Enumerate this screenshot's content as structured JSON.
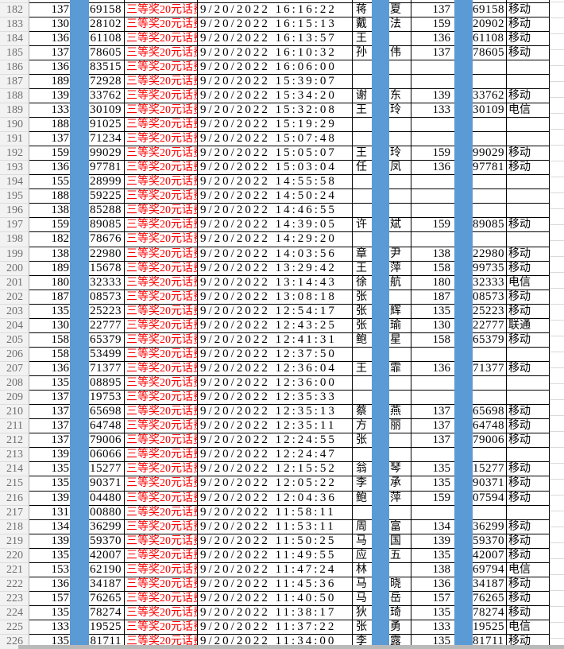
{
  "sheet": {
    "prize_label": "三等奖20元话费",
    "top_partial_row": {
      "carrier": "移动"
    },
    "rows": [
      {
        "n": "182",
        "p1": "137",
        "s1": "69158",
        "dt": "9/20/2022 16:16:22",
        "sn": "蒋",
        "gl": "夏",
        "p2": "137",
        "s2": "69158",
        "car": "移动"
      },
      {
        "n": "183",
        "p1": "130",
        "s1": "28102",
        "dt": "9/20/2022 16:15:13",
        "sn": "戴",
        "gl": "法",
        "p2": "159",
        "s2": "20902",
        "car": "移动"
      },
      {
        "n": "184",
        "p1": "136",
        "s1": "61108",
        "dt": "9/20/2022 16:13:57",
        "sn": "王",
        "gl": "",
        "p2": "136",
        "s2": "61108",
        "car": "移动"
      },
      {
        "n": "185",
        "p1": "137",
        "s1": "78605",
        "dt": "9/20/2022 16:10:32",
        "sn": "孙",
        "gl": "伟",
        "p2": "137",
        "s2": "78605",
        "car": "移动"
      },
      {
        "n": "186",
        "p1": "136",
        "s1": "83515",
        "dt": "9/20/2022 16:06:00",
        "sn": "",
        "gl": "",
        "p2": "",
        "s2": "",
        "car": ""
      },
      {
        "n": "187",
        "p1": "189",
        "s1": "72928",
        "dt": "9/20/2022 15:39:07",
        "sn": "",
        "gl": "",
        "p2": "",
        "s2": "",
        "car": ""
      },
      {
        "n": "188",
        "p1": "139",
        "s1": "33762",
        "dt": "9/20/2022 15:34:20",
        "sn": "谢",
        "gl": "东",
        "p2": "139",
        "s2": "33762",
        "car": "移动"
      },
      {
        "n": "189",
        "p1": "133",
        "s1": "30109",
        "dt": "9/20/2022 15:32:08",
        "sn": "王",
        "gl": "玲",
        "p2": "133",
        "s2": "30109",
        "car": "电信"
      },
      {
        "n": "190",
        "p1": "188",
        "s1": "91025",
        "dt": "9/20/2022 15:19:29",
        "sn": "",
        "gl": "",
        "p2": "",
        "s2": "",
        "car": ""
      },
      {
        "n": "191",
        "p1": "137",
        "s1": "71234",
        "dt": "9/20/2022 15:07:48",
        "sn": "",
        "gl": "",
        "p2": "",
        "s2": "",
        "car": ""
      },
      {
        "n": "192",
        "p1": "159",
        "s1": "99029",
        "dt": "9/20/2022 15:05:07",
        "sn": "王",
        "gl": "玲",
        "p2": "159",
        "s2": "99029",
        "car": "移动"
      },
      {
        "n": "193",
        "p1": "136",
        "s1": "97781",
        "dt": "9/20/2022 15:03:04",
        "sn": "任",
        "gl": "凤",
        "p2": "136",
        "s2": "97781",
        "car": "移动"
      },
      {
        "n": "194",
        "p1": "155",
        "s1": "28999",
        "dt": "9/20/2022 14:55:58",
        "sn": "",
        "gl": "",
        "p2": "",
        "s2": "",
        "car": ""
      },
      {
        "n": "195",
        "p1": "188",
        "s1": "59225",
        "dt": "9/20/2022 14:50:24",
        "sn": "",
        "gl": "",
        "p2": "",
        "s2": "",
        "car": ""
      },
      {
        "n": "196",
        "p1": "138",
        "s1": "85288",
        "dt": "9/20/2022 14:46:55",
        "sn": "",
        "gl": "",
        "p2": "",
        "s2": "",
        "car": ""
      },
      {
        "n": "197",
        "p1": "159",
        "s1": "89085",
        "dt": "9/20/2022 14:39:05",
        "sn": "许",
        "gl": "斌",
        "p2": "159",
        "s2": "89085",
        "car": "移动"
      },
      {
        "n": "198",
        "p1": "182",
        "s1": "78676",
        "dt": "9/20/2022 14:29:20",
        "sn": "",
        "gl": "",
        "p2": "",
        "s2": "",
        "car": ""
      },
      {
        "n": "199",
        "p1": "138",
        "s1": "22980",
        "dt": "9/20/2022 14:03:56",
        "sn": "章",
        "gl": "尹",
        "p2": "138",
        "s2": "22980",
        "car": "移动"
      },
      {
        "n": "200",
        "p1": "189",
        "s1": "15678",
        "dt": "9/20/2022 13:29:42",
        "sn": "王",
        "gl": "萍",
        "p2": "158",
        "s2": "99735",
        "car": "移动"
      },
      {
        "n": "201",
        "p1": "180",
        "s1": "32333",
        "dt": "9/20/2022 13:14:43",
        "sn": "徐",
        "gl": "航",
        "p2": "180",
        "s2": "32333",
        "car": "电信"
      },
      {
        "n": "202",
        "p1": "187",
        "s1": "08573",
        "dt": "9/20/2022 13:08:18",
        "sn": "张",
        "gl": "",
        "p2": "187",
        "s2": "08573",
        "car": "移动"
      },
      {
        "n": "203",
        "p1": "135",
        "s1": "25223",
        "dt": "9/20/2022 12:54:17",
        "sn": "张",
        "gl": "辉",
        "p2": "135",
        "s2": "25223",
        "car": "移动"
      },
      {
        "n": "204",
        "p1": "130",
        "s1": "22777",
        "dt": "9/20/2022 12:43:25",
        "sn": "张",
        "gl": "瑜",
        "p2": "130",
        "s2": "22777",
        "car": "联通"
      },
      {
        "n": "205",
        "p1": "158",
        "s1": "65379",
        "dt": "9/20/2022 12:41:31",
        "sn": "鲍",
        "gl": "星",
        "p2": "158",
        "s2": "65379",
        "car": "移动"
      },
      {
        "n": "206",
        "p1": "158",
        "s1": "53499",
        "dt": "9/20/2022 12:37:50",
        "sn": "",
        "gl": "",
        "p2": "",
        "s2": "",
        "car": ""
      },
      {
        "n": "207",
        "p1": "136",
        "s1": "71377",
        "dt": "9/20/2022 12:36:04",
        "sn": "王",
        "gl": "霏",
        "p2": "136",
        "s2": "71377",
        "car": "移动"
      },
      {
        "n": "208",
        "p1": "135",
        "s1": "08895",
        "dt": "9/20/2022 12:36:00",
        "sn": "",
        "gl": "",
        "p2": "",
        "s2": "",
        "car": ""
      },
      {
        "n": "209",
        "p1": "137",
        "s1": "19753",
        "dt": "9/20/2022 12:35:33",
        "sn": "",
        "gl": "",
        "p2": "",
        "s2": "",
        "car": ""
      },
      {
        "n": "210",
        "p1": "137",
        "s1": "65698",
        "dt": "9/20/2022 12:35:13",
        "sn": "蔡",
        "gl": "燕",
        "p2": "137",
        "s2": "65698",
        "car": "移动"
      },
      {
        "n": "211",
        "p1": "137",
        "s1": "64748",
        "dt": "9/20/2022 12:35:11",
        "sn": "方",
        "gl": "丽",
        "p2": "137",
        "s2": "64748",
        "car": "移动"
      },
      {
        "n": "212",
        "p1": "137",
        "s1": "79006",
        "dt": "9/20/2022 12:24:55",
        "sn": "张",
        "gl": "",
        "p2": "137",
        "s2": "79006",
        "car": "移动"
      },
      {
        "n": "213",
        "p1": "139",
        "s1": "06066",
        "dt": "9/20/2022 12:24:47",
        "sn": "",
        "gl": "",
        "p2": "",
        "s2": "",
        "car": ""
      },
      {
        "n": "214",
        "p1": "135",
        "s1": "15277",
        "dt": "9/20/2022 12:15:52",
        "sn": "翁",
        "gl": "琴",
        "p2": "135",
        "s2": "15277",
        "car": "移动"
      },
      {
        "n": "215",
        "p1": "135",
        "s1": "90371",
        "dt": "9/20/2022 12:05:22",
        "sn": "李",
        "gl": "承",
        "p2": "135",
        "s2": "90371",
        "car": "移动"
      },
      {
        "n": "216",
        "p1": "139",
        "s1": "04480",
        "dt": "9/20/2022 12:04:36",
        "sn": "鲍",
        "gl": "萍",
        "p2": "159",
        "s2": "07594",
        "car": "移动"
      },
      {
        "n": "217",
        "p1": "131",
        "s1": "00880",
        "dt": "9/20/2022 11:58:11",
        "sn": "",
        "gl": "",
        "p2": "",
        "s2": "",
        "car": ""
      },
      {
        "n": "218",
        "p1": "134",
        "s1": "36299",
        "dt": "9/20/2022 11:53:11",
        "sn": "周",
        "gl": "富",
        "p2": "134",
        "s2": "36299",
        "car": "移动"
      },
      {
        "n": "219",
        "p1": "139",
        "s1": "59370",
        "dt": "9/20/2022 11:50:25",
        "sn": "马",
        "gl": "国",
        "p2": "139",
        "s2": "59370",
        "car": "移动"
      },
      {
        "n": "220",
        "p1": "135",
        "s1": "42007",
        "dt": "9/20/2022 11:49:55",
        "sn": "应",
        "gl": "五",
        "p2": "135",
        "s2": "42007",
        "car": "移动"
      },
      {
        "n": "221",
        "p1": "153",
        "s1": "62190",
        "dt": "9/20/2022 11:47:24",
        "sn": "林",
        "gl": "",
        "p2": "138",
        "s2": "69794",
        "car": "电信"
      },
      {
        "n": "222",
        "p1": "136",
        "s1": "34187",
        "dt": "9/20/2022 11:45:36",
        "sn": "马",
        "gl": "晓",
        "p2": "136",
        "s2": "34187",
        "car": "移动"
      },
      {
        "n": "223",
        "p1": "157",
        "s1": "76265",
        "dt": "9/20/2022 11:40:50",
        "sn": "马",
        "gl": "岳",
        "p2": "157",
        "s2": "76265",
        "car": "移动"
      },
      {
        "n": "224",
        "p1": "135",
        "s1": "78274",
        "dt": "9/20/2022 11:38:17",
        "sn": "狄",
        "gl": "琦",
        "p2": "135",
        "s2": "78274",
        "car": "移动"
      },
      {
        "n": "225",
        "p1": "133",
        "s1": "19525",
        "dt": "9/20/2022 11:37:22",
        "sn": "张",
        "gl": "勇",
        "p2": "133",
        "s2": "19525",
        "car": "电信"
      },
      {
        "n": "226",
        "p1": "135",
        "s1": "81711",
        "dt": "9/20/2022 11:34:00",
        "sn": "李",
        "gl": "露",
        "p2": "135",
        "s2": "81711",
        "car": "移动"
      }
    ]
  },
  "colors": {
    "redaction_bar": "#5b9bd5",
    "prize_text": "#ff0000",
    "row_header_bg": "#f2f2f2",
    "grid_border": "#000000",
    "margin_gridline": "#d9d9d9",
    "scrollbar": "#b9b9b9"
  }
}
